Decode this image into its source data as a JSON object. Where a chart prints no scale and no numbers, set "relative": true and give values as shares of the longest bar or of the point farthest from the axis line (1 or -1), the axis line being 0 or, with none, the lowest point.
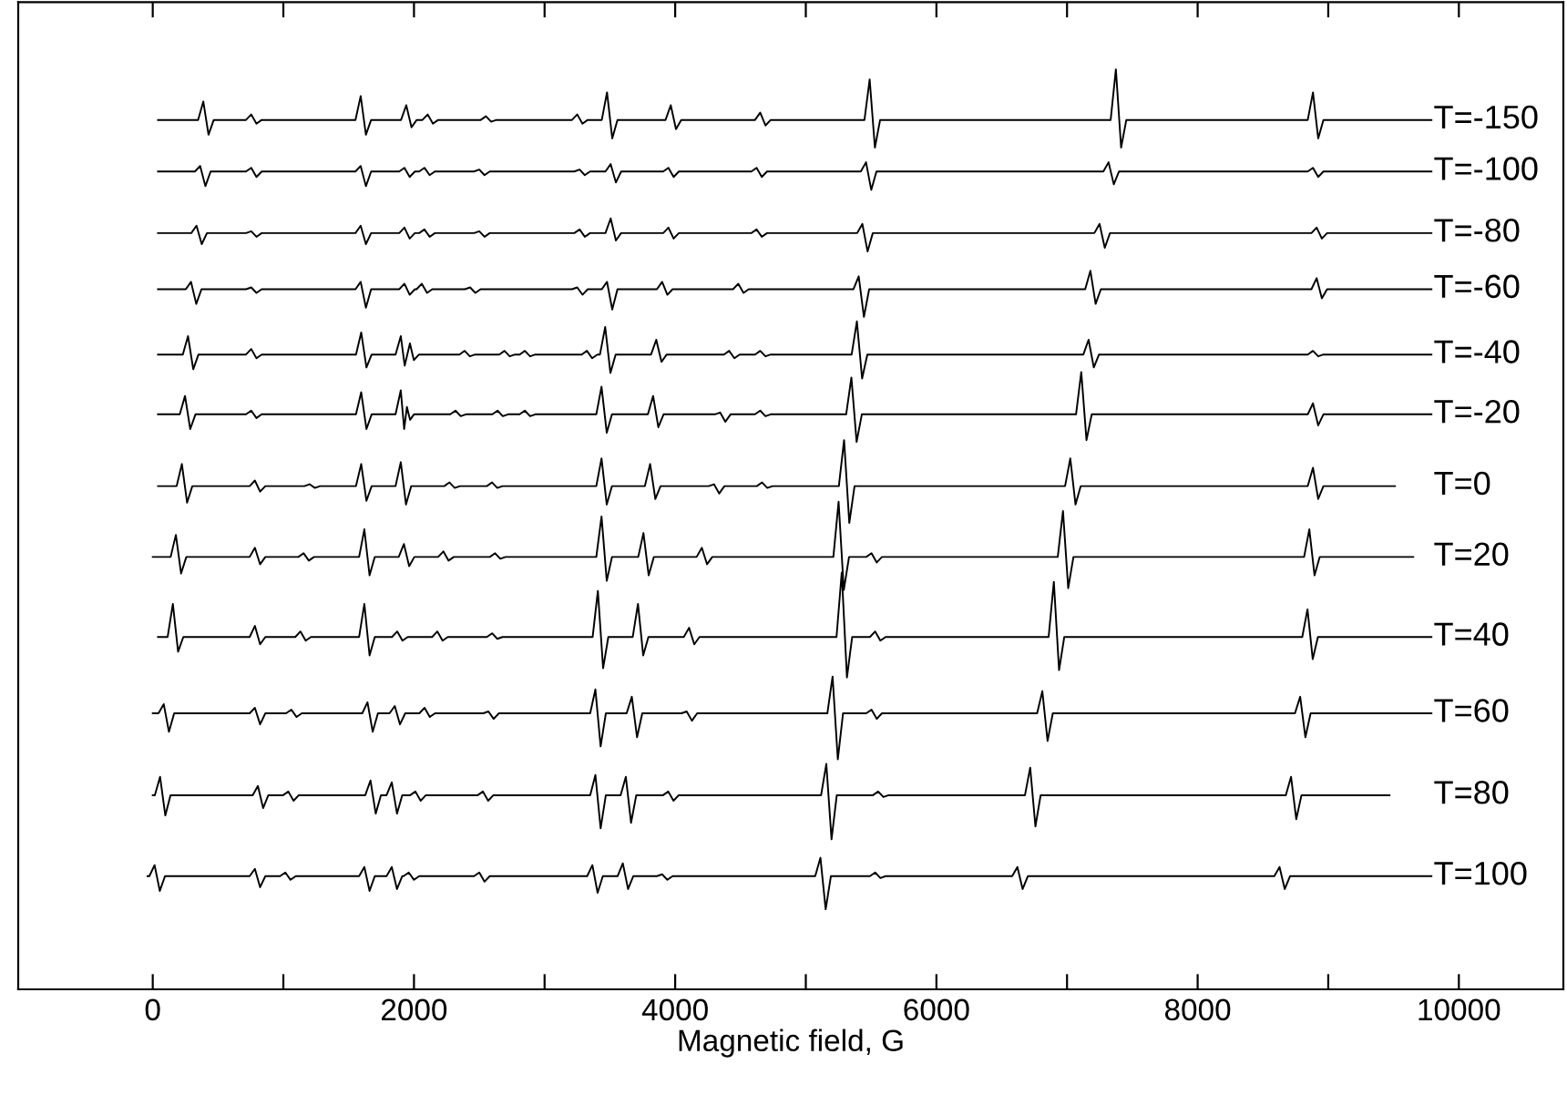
{
  "chart_data": {
    "type": "line",
    "xlabel": "Magnetic field, G",
    "relative": true,
    "legend": false,
    "grid": false,
    "tick_labels": "x",
    "marker": "none",
    "line_style": "solid",
    "xlim": [
      -1030,
      10800
    ],
    "xticks": [
      0,
      {
        "value": 1000,
        "label": null
      },
      2000,
      {
        "value": 3000,
        "label": null
      },
      4000,
      {
        "value": 5000,
        "label": null
      },
      6000,
      {
        "value": 7000,
        "label": null
      },
      8000,
      {
        "value": 9000,
        "label": null
      },
      10000
    ],
    "series": [
      {
        "name": "T=-150",
        "color": "#000000",
        "x": [
          40,
          347,
          387,
          427,
          467,
          714,
          754,
          794,
          834,
          1552,
          1592,
          1632,
          1672,
          1901,
          1941,
          1981,
          2021,
          2065,
          2105,
          2145,
          2185,
          2511,
          2551,
          2591,
          2631,
          3210,
          3250,
          3290,
          3330,
          3438,
          3478,
          3518,
          3558,
          3926,
          3966,
          4006,
          4046,
          4611,
          4651,
          4691,
          4731,
          5449,
          5489,
          5529,
          5569,
          7334,
          7374,
          7414,
          7454,
          8843,
          8883,
          8923,
          8963,
          9790
        ],
        "values": [
          0.945,
          0.945,
          0.965,
          0.929,
          0.945,
          0.945,
          0.951,
          0.941,
          0.945,
          0.945,
          0.971,
          0.929,
          0.945,
          0.945,
          0.961,
          0.937,
          0.945,
          0.945,
          0.951,
          0.941,
          0.945,
          0.945,
          0.949,
          0.943,
          0.945,
          0.945,
          0.951,
          0.941,
          0.945,
          0.945,
          0.975,
          0.925,
          0.945,
          0.945,
          0.961,
          0.935,
          0.945,
          0.945,
          0.953,
          0.939,
          0.945,
          0.945,
          0.989,
          0.915,
          0.945,
          0.945,
          1.0,
          0.915,
          0.945,
          0.945,
          0.975,
          0.925,
          0.945,
          0.945
        ]
      },
      {
        "name": "T=-100",
        "color": "#000000",
        "x": [
          40,
          323,
          363,
          403,
          443,
          714,
          754,
          794,
          834,
          1552,
          1592,
          1632,
          1672,
          1887,
          1927,
          1967,
          2007,
          2040,
          2080,
          2120,
          2160,
          2460,
          2500,
          2540,
          2580,
          3228,
          3268,
          3308,
          3348,
          3466,
          3506,
          3546,
          3586,
          3908,
          3948,
          3988,
          4028,
          4583,
          4623,
          4663,
          4703,
          5421,
          5461,
          5501,
          5541,
          7278,
          7318,
          7358,
          7398,
          8843,
          8883,
          8923,
          8963,
          9790
        ],
        "values": [
          0.889,
          0.889,
          0.895,
          0.873,
          0.889,
          0.889,
          0.893,
          0.883,
          0.889,
          0.889,
          0.895,
          0.873,
          0.889,
          0.889,
          0.893,
          0.883,
          0.889,
          0.889,
          0.893,
          0.885,
          0.889,
          0.889,
          0.891,
          0.885,
          0.889,
          0.889,
          0.891,
          0.885,
          0.889,
          0.889,
          0.897,
          0.877,
          0.889,
          0.889,
          0.893,
          0.883,
          0.889,
          0.889,
          0.893,
          0.883,
          0.889,
          0.889,
          0.899,
          0.869,
          0.889,
          0.889,
          0.899,
          0.875,
          0.889,
          0.889,
          0.893,
          0.883,
          0.889,
          0.889
        ]
      },
      {
        "name": "T=-80",
        "color": "#000000",
        "x": [
          40,
          295,
          335,
          375,
          415,
          714,
          754,
          794,
          834,
          1552,
          1592,
          1632,
          1672,
          1887,
          1927,
          1967,
          2007,
          2040,
          2080,
          2120,
          2160,
          2460,
          2500,
          2540,
          2580,
          3228,
          3268,
          3308,
          3348,
          3466,
          3506,
          3546,
          3586,
          3908,
          3948,
          3988,
          4028,
          4583,
          4623,
          4663,
          4703,
          5393,
          5433,
          5473,
          5513,
          7209,
          7249,
          7289,
          7329,
          8871,
          8911,
          8951,
          8991,
          9790
        ],
        "values": [
          0.822,
          0.822,
          0.83,
          0.81,
          0.822,
          0.822,
          0.824,
          0.818,
          0.822,
          0.822,
          0.83,
          0.81,
          0.822,
          0.822,
          0.828,
          0.816,
          0.822,
          0.822,
          0.826,
          0.818,
          0.822,
          0.822,
          0.824,
          0.818,
          0.822,
          0.822,
          0.826,
          0.818,
          0.822,
          0.822,
          0.838,
          0.814,
          0.822,
          0.822,
          0.828,
          0.816,
          0.822,
          0.822,
          0.826,
          0.818,
          0.822,
          0.822,
          0.832,
          0.802,
          0.822,
          0.822,
          0.832,
          0.806,
          0.822,
          0.822,
          0.828,
          0.816,
          0.822,
          0.822
        ]
      },
      {
        "name": "T=-60",
        "color": "#000000",
        "x": [
          40,
          253,
          293,
          333,
          373,
          714,
          754,
          794,
          834,
          1552,
          1592,
          1632,
          1672,
          1887,
          1927,
          1967,
          2007,
          2020,
          2060,
          2100,
          2140,
          2390,
          2430,
          2470,
          2510,
          3210,
          3250,
          3290,
          3330,
          3438,
          3478,
          3518,
          3558,
          3860,
          3900,
          3940,
          3980,
          4443,
          4483,
          4523,
          4563,
          5365,
          5405,
          5445,
          5485,
          7139,
          7179,
          7219,
          7259,
          8871,
          8911,
          8951,
          8991,
          9790
        ],
        "values": [
          0.761,
          0.761,
          0.769,
          0.745,
          0.761,
          0.761,
          0.763,
          0.757,
          0.761,
          0.761,
          0.769,
          0.741,
          0.761,
          0.761,
          0.767,
          0.755,
          0.761,
          0.761,
          0.767,
          0.757,
          0.761,
          0.761,
          0.763,
          0.757,
          0.761,
          0.761,
          0.763,
          0.755,
          0.761,
          0.761,
          0.769,
          0.739,
          0.761,
          0.761,
          0.769,
          0.755,
          0.761,
          0.761,
          0.767,
          0.757,
          0.761,
          0.761,
          0.775,
          0.731,
          0.761,
          0.761,
          0.781,
          0.745,
          0.761,
          0.761,
          0.773,
          0.751,
          0.761,
          0.761
        ]
      },
      {
        "name": "T=-40",
        "color": "#000000",
        "x": [
          40,
          230,
          270,
          310,
          350,
          714,
          754,
          794,
          834,
          1556,
          1596,
          1636,
          1676,
          1859,
          1899,
          1929,
          1969,
          1999,
          2039,
          2348,
          2388,
          2428,
          2468,
          2653,
          2693,
          2733,
          2773,
          2809,
          2849,
          2889,
          2929,
          3284,
          3324,
          3364,
          3404,
          3424,
          3464,
          3504,
          3544,
          3815,
          3855,
          3895,
          3935,
          4373,
          4413,
          4453,
          4493,
          4611,
          4651,
          4691,
          4731,
          5351,
          5391,
          5431,
          5471,
          7125,
          7165,
          7205,
          7245,
          8843,
          8883,
          8923,
          8963,
          9790
        ],
        "values": [
          0.69,
          0.69,
          0.71,
          0.674,
          0.69,
          0.69,
          0.696,
          0.686,
          0.69,
          0.69,
          0.714,
          0.676,
          0.69,
          0.69,
          0.71,
          0.678,
          0.702,
          0.684,
          0.69,
          0.69,
          0.694,
          0.688,
          0.69,
          0.69,
          0.694,
          0.688,
          0.69,
          0.69,
          0.694,
          0.688,
          0.69,
          0.69,
          0.694,
          0.686,
          0.69,
          0.69,
          0.72,
          0.67,
          0.69,
          0.69,
          0.706,
          0.682,
          0.69,
          0.69,
          0.694,
          0.686,
          0.69,
          0.69,
          0.694,
          0.688,
          0.69,
          0.69,
          0.726,
          0.664,
          0.69,
          0.69,
          0.706,
          0.676,
          0.69,
          0.69,
          0.694,
          0.688,
          0.69,
          0.69
        ]
      },
      {
        "name": "T=-20",
        "color": "#000000",
        "x": [
          40,
          207,
          247,
          287,
          327,
          714,
          754,
          794,
          834,
          1556,
          1596,
          1636,
          1676,
          1859,
          1899,
          1925,
          1946,
          1970,
          2000,
          2278,
          2318,
          2358,
          2398,
          2600,
          2640,
          2680,
          2720,
          2809,
          2849,
          2889,
          2929,
          3396,
          3436,
          3476,
          3516,
          3791,
          3831,
          3871,
          3911,
          4304,
          4344,
          4384,
          4424,
          4611,
          4651,
          4691,
          4731,
          5309,
          5349,
          5389,
          5429,
          7069,
          7109,
          7149,
          7189,
          8843,
          8883,
          8923,
          8963,
          9790
        ],
        "values": [
          0.625,
          0.625,
          0.645,
          0.609,
          0.625,
          0.625,
          0.629,
          0.621,
          0.625,
          0.625,
          0.649,
          0.609,
          0.625,
          0.625,
          0.651,
          0.609,
          0.633,
          0.619,
          0.625,
          0.625,
          0.629,
          0.623,
          0.625,
          0.625,
          0.629,
          0.623,
          0.625,
          0.625,
          0.629,
          0.623,
          0.625,
          0.625,
          0.655,
          0.605,
          0.625,
          0.625,
          0.645,
          0.611,
          0.625,
          0.625,
          0.627,
          0.617,
          0.625,
          0.625,
          0.629,
          0.623,
          0.625,
          0.625,
          0.665,
          0.595,
          0.625,
          0.625,
          0.671,
          0.597,
          0.625,
          0.625,
          0.637,
          0.613,
          0.625,
          0.625
        ]
      },
      {
        "name": "T=0",
        "color": "#000000",
        "x": [
          40,
          183,
          223,
          263,
          303,
          742,
          782,
          822,
          862,
          1161,
          1201,
          1241,
          1281,
          1556,
          1596,
          1636,
          1676,
          1859,
          1899,
          1939,
          1979,
          2232,
          2272,
          2312,
          2352,
          2558,
          2598,
          2638,
          2678,
          3396,
          3436,
          3476,
          3516,
          3768,
          3808,
          3848,
          3888,
          4257,
          4297,
          4337,
          4377,
          4625,
          4665,
          4705,
          4745,
          5253,
          5293,
          5333,
          5373,
          6985,
          7025,
          7065,
          7105,
          8843,
          8883,
          8923,
          8963,
          9511
        ],
        "values": [
          0.547,
          0.547,
          0.571,
          0.529,
          0.547,
          0.547,
          0.553,
          0.541,
          0.547,
          0.547,
          0.549,
          0.545,
          0.547,
          0.547,
          0.571,
          0.531,
          0.547,
          0.547,
          0.573,
          0.527,
          0.547,
          0.547,
          0.551,
          0.545,
          0.547,
          0.547,
          0.551,
          0.545,
          0.547,
          0.547,
          0.577,
          0.527,
          0.547,
          0.547,
          0.571,
          0.533,
          0.547,
          0.547,
          0.549,
          0.539,
          0.547,
          0.547,
          0.551,
          0.545,
          0.547,
          0.547,
          0.597,
          0.507,
          0.547,
          0.547,
          0.577,
          0.527,
          0.547,
          0.547,
          0.567,
          0.533,
          0.547,
          0.547
        ]
      },
      {
        "name": "T=20",
        "color": "#000000",
        "x": [
          0,
          137,
          177,
          217,
          257,
          742,
          782,
          822,
          862,
          1115,
          1155,
          1195,
          1235,
          1580,
          1620,
          1660,
          1700,
          1883,
          1923,
          1963,
          2003,
          2185,
          2225,
          2265,
          2305,
          2581,
          2621,
          2661,
          2701,
          3396,
          3436,
          3476,
          3516,
          3717,
          3757,
          3797,
          3837,
          4164,
          4204,
          4244,
          4284,
          5211,
          5251,
          5291,
          5331,
          5463,
          5503,
          5543,
          5583,
          6929,
          6969,
          7009,
          7049,
          8815,
          8855,
          8895,
          8935,
          9651
        ],
        "values": [
          0.47,
          0.47,
          0.494,
          0.452,
          0.47,
          0.47,
          0.48,
          0.462,
          0.47,
          0.47,
          0.474,
          0.466,
          0.47,
          0.47,
          0.5,
          0.45,
          0.47,
          0.47,
          0.484,
          0.46,
          0.47,
          0.47,
          0.476,
          0.466,
          0.47,
          0.47,
          0.474,
          0.468,
          0.47,
          0.47,
          0.514,
          0.444,
          0.47,
          0.47,
          0.496,
          0.45,
          0.47,
          0.47,
          0.48,
          0.462,
          0.47,
          0.47,
          0.53,
          0.434,
          0.47,
          0.47,
          0.474,
          0.464,
          0.47,
          0.47,
          0.52,
          0.436,
          0.47,
          0.47,
          0.5,
          0.45,
          0.47,
          0.47
        ]
      },
      {
        "name": "T=40",
        "color": "#000000",
        "x": [
          40,
          114,
          154,
          194,
          234,
          742,
          782,
          822,
          862,
          1091,
          1131,
          1171,
          1211,
          1580,
          1620,
          1660,
          1700,
          1832,
          1872,
          1912,
          1952,
          2139,
          2179,
          2219,
          2259,
          2558,
          2598,
          2638,
          2678,
          3368,
          3408,
          3448,
          3488,
          3675,
          3715,
          3755,
          3795,
          4066,
          4106,
          4146,
          4186,
          5235,
          5275,
          5315,
          5355,
          5491,
          5531,
          5571,
          5611,
          6859,
          6899,
          6939,
          6979,
          8801,
          8841,
          8881,
          8921,
          9790
        ],
        "values": [
          0.383,
          0.383,
          0.419,
          0.367,
          0.383,
          0.383,
          0.395,
          0.375,
          0.383,
          0.383,
          0.389,
          0.379,
          0.383,
          0.383,
          0.419,
          0.363,
          0.383,
          0.383,
          0.389,
          0.379,
          0.383,
          0.383,
          0.389,
          0.379,
          0.383,
          0.383,
          0.387,
          0.381,
          0.383,
          0.383,
          0.433,
          0.349,
          0.383,
          0.383,
          0.419,
          0.363,
          0.383,
          0.383,
          0.393,
          0.375,
          0.383,
          0.383,
          0.453,
          0.339,
          0.383,
          0.383,
          0.389,
          0.379,
          0.383,
          0.383,
          0.443,
          0.347,
          0.383,
          0.383,
          0.413,
          0.359,
          0.383,
          0.383
        ]
      },
      {
        "name": "T=60",
        "color": "#000000",
        "x": [
          0,
          44,
          84,
          124,
          164,
          742,
          782,
          822,
          862,
          1021,
          1061,
          1101,
          1141,
          1604,
          1644,
          1684,
          1724,
          1813,
          1853,
          1893,
          1933,
          2041,
          2081,
          2121,
          2161,
          2530,
          2570,
          2610,
          2650,
          3349,
          3389,
          3429,
          3469,
          3628,
          3668,
          3708,
          3748,
          4048,
          4088,
          4128,
          4168,
          5165,
          5205,
          5245,
          5285,
          5463,
          5503,
          5543,
          5583,
          6771,
          6811,
          6851,
          6891,
          8745,
          8785,
          8825,
          8865,
          9790
        ],
        "values": [
          0.3,
          0.3,
          0.31,
          0.28,
          0.3,
          0.3,
          0.306,
          0.288,
          0.3,
          0.3,
          0.304,
          0.296,
          0.3,
          0.3,
          0.312,
          0.28,
          0.3,
          0.3,
          0.308,
          0.288,
          0.3,
          0.3,
          0.306,
          0.296,
          0.3,
          0.3,
          0.302,
          0.294,
          0.3,
          0.3,
          0.326,
          0.264,
          0.3,
          0.3,
          0.318,
          0.274,
          0.3,
          0.3,
          0.302,
          0.292,
          0.3,
          0.3,
          0.34,
          0.25,
          0.3,
          0.3,
          0.304,
          0.294,
          0.3,
          0.3,
          0.324,
          0.27,
          0.3,
          0.3,
          0.318,
          0.274,
          0.3,
          0.3
        ]
      },
      {
        "name": "T=80",
        "color": "#000000",
        "x": [
          0,
          16,
          56,
          96,
          136,
          765,
          805,
          845,
          885,
          998,
          1038,
          1078,
          1118,
          1627,
          1667,
          1707,
          1747,
          1790,
          1830,
          1870,
          1910,
          1971,
          2011,
          2051,
          2091,
          2488,
          2528,
          2568,
          2608,
          3349,
          3389,
          3429,
          3469,
          3582,
          3622,
          3662,
          3702,
          3907,
          3947,
          3987,
          4027,
          5117,
          5157,
          5197,
          5237,
          5514,
          5554,
          5594,
          5634,
          6678,
          6718,
          6758,
          6798,
          8675,
          8715,
          8755,
          8795,
          9469
        ],
        "values": [
          0.211,
          0.211,
          0.231,
          0.189,
          0.211,
          0.211,
          0.221,
          0.197,
          0.211,
          0.211,
          0.215,
          0.205,
          0.211,
          0.211,
          0.227,
          0.191,
          0.211,
          0.211,
          0.225,
          0.191,
          0.211,
          0.211,
          0.215,
          0.205,
          0.211,
          0.211,
          0.215,
          0.205,
          0.211,
          0.211,
          0.233,
          0.175,
          0.211,
          0.211,
          0.231,
          0.181,
          0.211,
          0.211,
          0.215,
          0.205,
          0.211,
          0.211,
          0.245,
          0.163,
          0.211,
          0.211,
          0.215,
          0.209,
          0.211,
          0.211,
          0.241,
          0.177,
          0.211,
          0.211,
          0.231,
          0.185,
          0.211,
          0.211
        ]
      },
      {
        "name": "T=100",
        "color": "#000000",
        "x": [
          -40,
          -26,
          14,
          54,
          94,
          742,
          782,
          822,
          862,
          975,
          1015,
          1055,
          1095,
          1580,
          1620,
          1660,
          1700,
          1790,
          1830,
          1870,
          1910,
          1920,
          1960,
          2000,
          2040,
          2460,
          2500,
          2540,
          2580,
          3326,
          3366,
          3406,
          3446,
          3559,
          3599,
          3639,
          3679,
          3860,
          3900,
          3940,
          3980,
          5072,
          5112,
          5152,
          5192,
          5491,
          5531,
          5571,
          5611,
          6580,
          6620,
          6660,
          6700,
          8587,
          8627,
          8667,
          8707,
          9790
        ],
        "values": [
          0.123,
          0.123,
          0.135,
          0.107,
          0.123,
          0.123,
          0.131,
          0.111,
          0.123,
          0.123,
          0.127,
          0.119,
          0.123,
          0.123,
          0.133,
          0.107,
          0.123,
          0.123,
          0.133,
          0.109,
          0.123,
          0.123,
          0.127,
          0.119,
          0.123,
          0.123,
          0.127,
          0.117,
          0.123,
          0.123,
          0.135,
          0.105,
          0.123,
          0.123,
          0.137,
          0.109,
          0.123,
          0.123,
          0.125,
          0.119,
          0.123,
          0.123,
          0.143,
          0.087,
          0.123,
          0.123,
          0.127,
          0.121,
          0.123,
          0.123,
          0.133,
          0.109,
          0.123,
          0.123,
          0.133,
          0.109,
          0.123,
          0.123
        ]
      }
    ]
  }
}
